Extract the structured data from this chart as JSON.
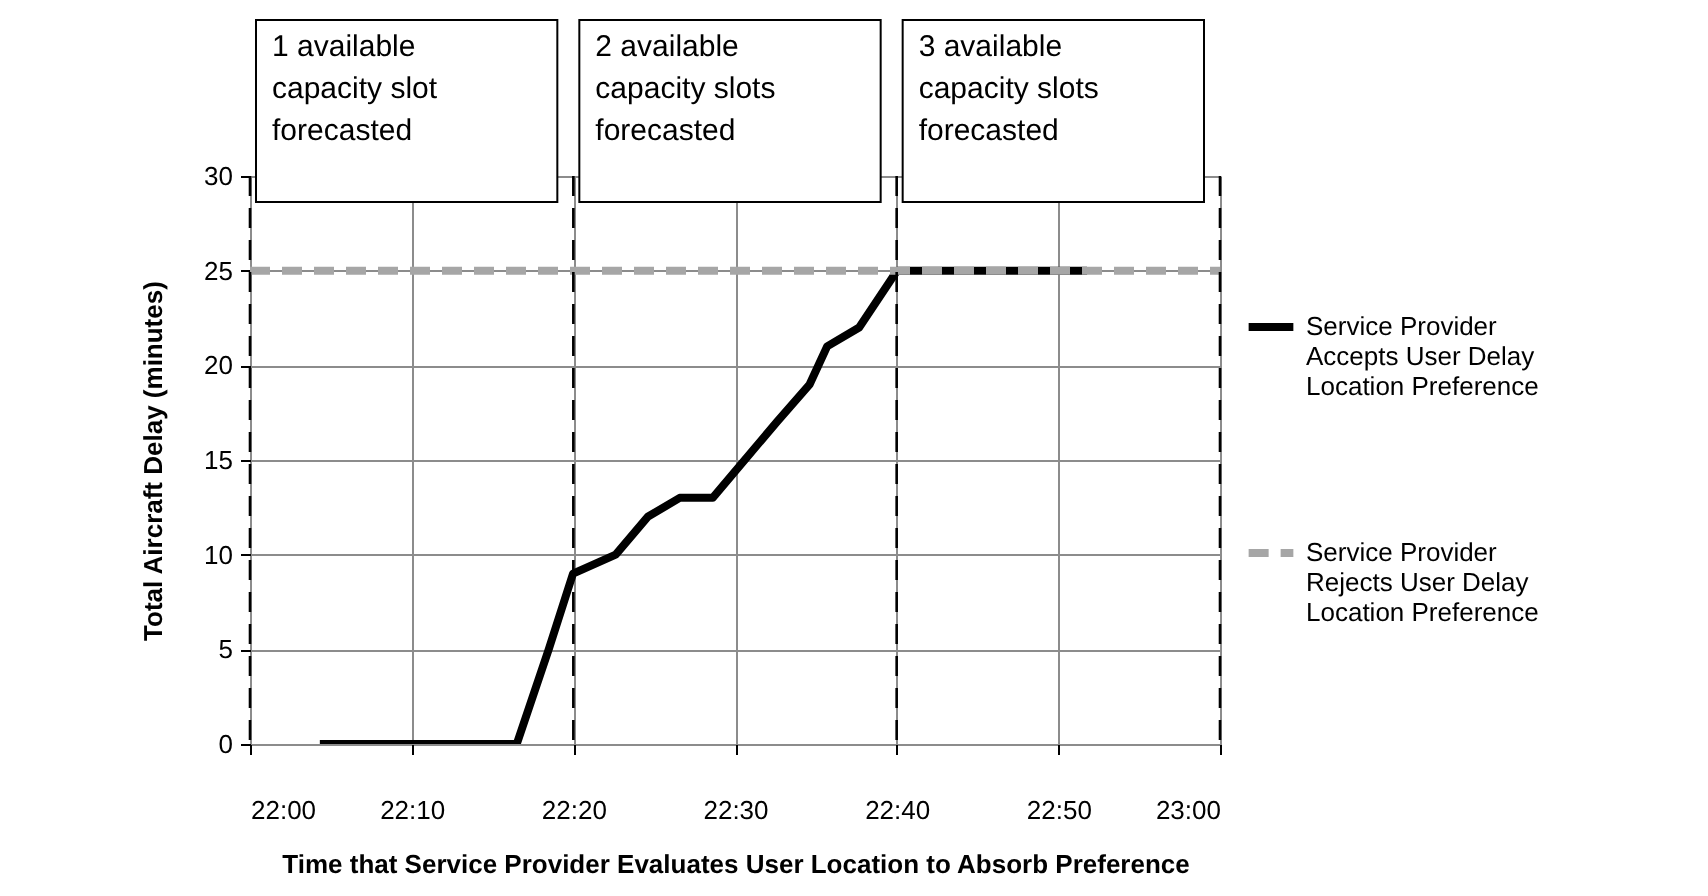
{
  "chart_data": {
    "type": "line",
    "xlabel": "Time that Service Provider Evaluates User Location to Absorb Preference",
    "ylabel": "Total Aircraft  Delay (minutes)",
    "series": [
      {
        "name": "Service Provider Accepts User Delay Location Preference",
        "color": "#000000",
        "line_style": "solid",
        "x": [
          22.072,
          22.275,
          22.308,
          22.333,
          22.377,
          22.41,
          22.443,
          22.477,
          22.543,
          22.577,
          22.595,
          22.628,
          22.667,
          22.863
        ],
        "values": [
          0,
          0,
          5,
          9,
          10,
          12,
          13,
          13,
          17,
          19,
          21,
          22,
          25,
          25
        ]
      },
      {
        "name": "Service Provider Rejects User Delay Location Preference",
        "color": "#a6a6a6",
        "line_style": "dashed",
        "x": [
          22,
          23
        ],
        "values": [
          25,
          25
        ]
      }
    ],
    "xlim": [
      22,
      23
    ],
    "xticks": [
      {
        "value": 22,
        "label": "22:00"
      },
      {
        "value": 22.166667,
        "label": "22:10"
      },
      {
        "value": 22.333333,
        "label": "22:20"
      },
      {
        "value": 22.5,
        "label": "22:30"
      },
      {
        "value": 22.666667,
        "label": "22:40"
      },
      {
        "value": 22.833333,
        "label": "22:50"
      },
      {
        "value": 23,
        "label": "23:00"
      }
    ],
    "ylim": [
      0,
      30
    ],
    "yticks": [
      0,
      5,
      10,
      15,
      20,
      25,
      30
    ],
    "grid": true,
    "legend": "right",
    "marker": "none",
    "ref_lines": [
      {
        "axis": "x",
        "value": 22,
        "color": "#000000",
        "line_style": "dashed"
      },
      {
        "axis": "x",
        "value": 22.333333,
        "color": "#000000",
        "line_style": "dashed"
      },
      {
        "axis": "x",
        "value": 22.666667,
        "color": "#000000",
        "line_style": "dashed"
      },
      {
        "axis": "x",
        "value": 23,
        "color": "#000000",
        "line_style": "dashed"
      }
    ],
    "annotations": [
      "1 available capacity slot forecasted",
      "2 available capacity slots forecasted",
      "3 available capacity slots forecasted"
    ]
  }
}
